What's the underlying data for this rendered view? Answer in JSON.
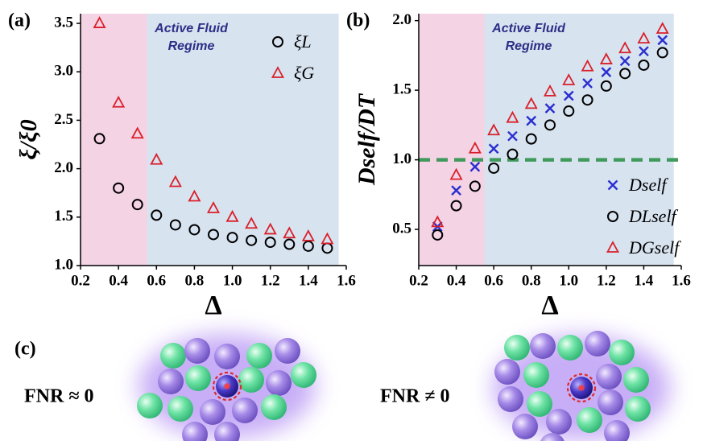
{
  "chart_data": [
    {
      "type": "scatter",
      "panel_label": "(a)",
      "xlabel": "Δ",
      "ylabel": "ξ/ξ0",
      "x": [
        0.3,
        0.4,
        0.5,
        0.6,
        0.7,
        0.8,
        0.9,
        1.0,
        1.1,
        1.2,
        1.3,
        1.4,
        1.5
      ],
      "series": [
        {
          "name": "ξL",
          "color": "#000000",
          "marker": "circle",
          "values": [
            2.31,
            1.8,
            1.63,
            1.52,
            1.42,
            1.37,
            1.32,
            1.29,
            1.26,
            1.24,
            1.22,
            1.2,
            1.18
          ]
        },
        {
          "name": "ξG",
          "color": "#d9202a",
          "marker": "triangle",
          "values": [
            3.5,
            2.68,
            2.36,
            2.09,
            1.86,
            1.71,
            1.59,
            1.5,
            1.43,
            1.37,
            1.33,
            1.3,
            1.27
          ]
        }
      ],
      "xlim": [
        0.2,
        1.6
      ],
      "ylim": [
        1.0,
        3.6
      ],
      "xticks": [
        0.2,
        0.4,
        0.6,
        0.8,
        {
          "value": 1,
          "label": "1.0"
        },
        1.2,
        1.4,
        1.6
      ],
      "yticks": [
        {
          "value": 1,
          "label": "1.0"
        },
        1.5,
        {
          "value": 2,
          "label": "2.0"
        },
        2.5,
        {
          "value": 3,
          "label": "3.0"
        },
        3.5
      ],
      "regions": [
        {
          "xlim": [
            0.2,
            0.55
          ],
          "color": "#f4d3e4"
        },
        {
          "xlim": [
            0.55,
            1.56
          ],
          "color": "#d8e3f0"
        }
      ],
      "region_text": [
        "Active Fluid",
        "Regime"
      ],
      "legend": "upper right"
    },
    {
      "type": "scatter",
      "panel_label": "(b)",
      "xlabel": "Δ",
      "ylabel": "Dself/DT",
      "x": [
        0.3,
        0.4,
        0.5,
        0.6,
        0.7,
        0.8,
        0.9,
        1.0,
        1.1,
        1.2,
        1.3,
        1.4,
        1.5
      ],
      "series": [
        {
          "name": "Dself",
          "color": "#2a2fd0",
          "marker": "x",
          "values": [
            0.52,
            0.78,
            0.95,
            1.08,
            1.17,
            1.28,
            1.37,
            1.46,
            1.55,
            1.63,
            1.71,
            1.78,
            1.86
          ]
        },
        {
          "name": "DLself",
          "color": "#000000",
          "marker": "circle",
          "values": [
            0.46,
            0.67,
            0.81,
            0.94,
            1.04,
            1.15,
            1.25,
            1.35,
            1.43,
            1.53,
            1.62,
            1.68,
            1.77
          ]
        },
        {
          "name": "DGself",
          "color": "#d9202a",
          "marker": "triangle",
          "values": [
            0.55,
            0.89,
            1.08,
            1.21,
            1.3,
            1.4,
            1.49,
            1.57,
            1.67,
            1.72,
            1.8,
            1.87,
            1.94
          ]
        }
      ],
      "xlim": [
        0.2,
        1.6
      ],
      "ylim": [
        0.24,
        2.05
      ],
      "xticks": [
        0.2,
        0.4,
        0.6,
        0.8,
        {
          "value": 1,
          "label": "1.0"
        },
        1.2,
        1.4,
        1.6
      ],
      "yticks": [
        0.5,
        {
          "value": 1,
          "label": "1.0"
        },
        1.5,
        {
          "value": 2,
          "label": "2.0"
        }
      ],
      "regions": [
        {
          "xlim": [
            0.2,
            0.55
          ],
          "color": "#f4d3e4"
        },
        {
          "xlim": [
            0.55,
            1.56
          ],
          "color": "#d8e3f0"
        }
      ],
      "region_text": [
        "Active Fluid",
        "Regime"
      ],
      "legend": "lower right",
      "hline": {
        "y": 1.0,
        "color": "#3f9a5c"
      }
    }
  ],
  "panel_c": {
    "label": "(c)",
    "left": "FNR ≈ 0",
    "right": "FNR ≠ 0"
  }
}
